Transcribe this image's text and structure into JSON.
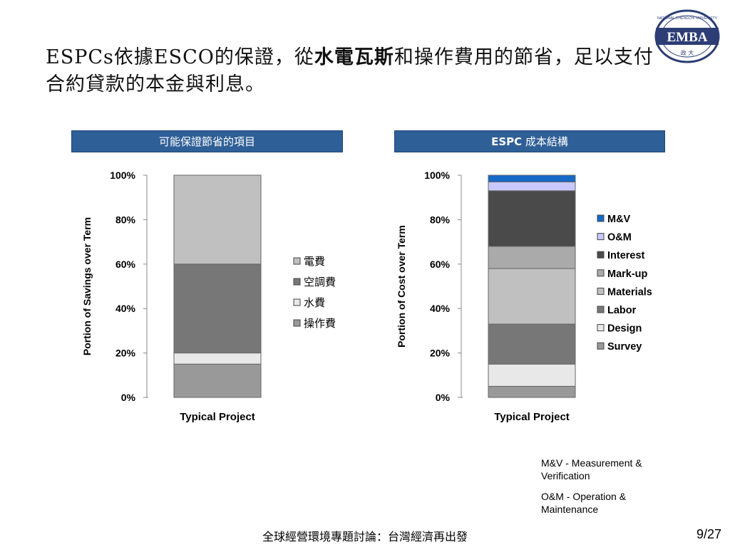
{
  "slide": {
    "title_part1": "ESPCs依據ESCO的保證，從",
    "title_highlight": "水電瓦斯",
    "title_part2": "和操作費用的節省，足以支付合約貸款的本金與利息。",
    "logo_text": "EMBA",
    "logo_ring_text": "NATIONAL CHENGCHI UNIVERSITY",
    "logo_sub": "政 大",
    "footer": "全球經營環境專題討論：台灣經濟再出發",
    "page": "9/27",
    "note1": "M&V - Measurement & Verification",
    "note2": "O&M - Operation & Maintenance",
    "colors": {
      "header_bg": "#2f5f97"
    }
  },
  "chart_data": [
    {
      "type": "bar",
      "stacked": true,
      "header": "可能保證節省的項目",
      "categories": [
        "Typical Project"
      ],
      "ylabel": "Portion of Savings over Term",
      "ylim": [
        0,
        100
      ],
      "yticks": [
        "0%",
        "20%",
        "40%",
        "60%",
        "80%",
        "100%"
      ],
      "legend_position": "right",
      "series": [
        {
          "name": "操作費",
          "values": [
            15
          ],
          "color": "#999999"
        },
        {
          "name": "水費",
          "values": [
            5
          ],
          "color": "#e8e8e8"
        },
        {
          "name": "空調費",
          "values": [
            40
          ],
          "color": "#777777"
        },
        {
          "name": "電費",
          "values": [
            40
          ],
          "color": "#c0c0c0"
        }
      ]
    },
    {
      "type": "bar",
      "stacked": true,
      "header_bold": "ESPC",
      "header_rest": " 成本結構",
      "categories": [
        "Typical Project"
      ],
      "ylabel": "Portion of Cost over Term",
      "ylim": [
        0,
        100
      ],
      "yticks": [
        "0%",
        "20%",
        "40%",
        "60%",
        "80%",
        "100%"
      ],
      "legend_position": "right",
      "series": [
        {
          "name": "Survey",
          "values": [
            5
          ],
          "color": "#999999"
        },
        {
          "name": "Design",
          "values": [
            10
          ],
          "color": "#e8e8e8"
        },
        {
          "name": "Labor",
          "values": [
            18
          ],
          "color": "#777777"
        },
        {
          "name": "Materials",
          "values": [
            25
          ],
          "color": "#c0c0c0"
        },
        {
          "name": "Mark-up",
          "values": [
            10
          ],
          "color": "#aaaaaa"
        },
        {
          "name": "Interest",
          "values": [
            25
          ],
          "color": "#4a4a4a"
        },
        {
          "name": "O&M",
          "values": [
            4
          ],
          "color": "#c8c8ff"
        },
        {
          "name": "M&V",
          "values": [
            3
          ],
          "color": "#1569c7"
        }
      ]
    }
  ]
}
